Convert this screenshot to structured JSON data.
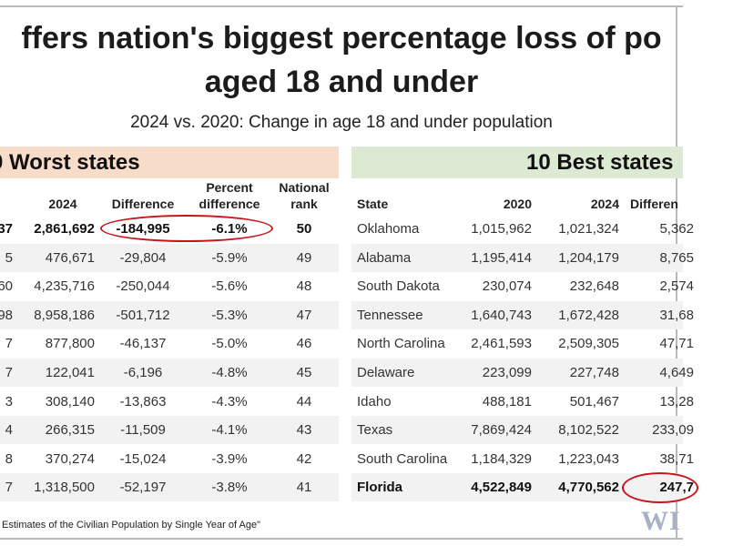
{
  "headline": {
    "line1": "ffers nation's biggest percentage loss of po",
    "line2": "aged 18 and under"
  },
  "subtitle": "2024 vs. 2020: Change in age 18 and under population",
  "worst": {
    "title": "0 Worst states",
    "headers": {
      "y2024": "2024",
      "difference": "Difference",
      "percent_l1": "Percent",
      "percent_l2": "difference",
      "rank_l1": "National",
      "rank_l2": "rank"
    },
    "rows": [
      {
        "y2020": "37",
        "y2024": "2,861,692",
        "difference": "-184,995",
        "percent": "-6.1%",
        "rank": "50"
      },
      {
        "y2020": "5",
        "y2024": "476,671",
        "difference": "-29,804",
        "percent": "-5.9%",
        "rank": "49"
      },
      {
        "y2020": "60",
        "y2024": "4,235,716",
        "difference": "-250,044",
        "percent": "-5.6%",
        "rank": "48"
      },
      {
        "y2020": "98",
        "y2024": "8,958,186",
        "difference": "-501,712",
        "percent": "-5.3%",
        "rank": "47"
      },
      {
        "y2020": "7",
        "y2024": "877,800",
        "difference": "-46,137",
        "percent": "-5.0%",
        "rank": "46"
      },
      {
        "y2020": "7",
        "y2024": "122,041",
        "difference": "-6,196",
        "percent": "-4.8%",
        "rank": "45"
      },
      {
        "y2020": "3",
        "y2024": "308,140",
        "difference": "-13,863",
        "percent": "-4.3%",
        "rank": "44"
      },
      {
        "y2020": "4",
        "y2024": "266,315",
        "difference": "-11,509",
        "percent": "-4.1%",
        "rank": "43"
      },
      {
        "y2020": "8",
        "y2024": "370,274",
        "difference": "-15,024",
        "percent": "-3.9%",
        "rank": "42"
      },
      {
        "y2020": "7",
        "y2024": "1,318,500",
        "difference": "-52,197",
        "percent": "-3.8%",
        "rank": "41"
      }
    ]
  },
  "best": {
    "title": "10 Best states",
    "headers": {
      "state": "State",
      "y2020": "2020",
      "y2024": "2024",
      "difference": "Differen"
    },
    "rows": [
      {
        "state": "Oklahoma",
        "y2020": "1,015,962",
        "y2024": "1,021,324",
        "difference": "5,362"
      },
      {
        "state": "Alabama",
        "y2020": "1,195,414",
        "y2024": "1,204,179",
        "difference": "8,765"
      },
      {
        "state": "South Dakota",
        "y2020": "230,074",
        "y2024": "232,648",
        "difference": "2,574"
      },
      {
        "state": "Tennessee",
        "y2020": "1,640,743",
        "y2024": "1,672,428",
        "difference": "31,68"
      },
      {
        "state": "North Carolina",
        "y2020": "2,461,593",
        "y2024": "2,509,305",
        "difference": "47,71"
      },
      {
        "state": "Delaware",
        "y2020": "223,099",
        "y2024": "227,748",
        "difference": "4,649"
      },
      {
        "state": "Idaho",
        "y2020": "488,181",
        "y2024": "501,467",
        "difference": "13,28"
      },
      {
        "state": "Texas",
        "y2020": "7,869,424",
        "y2024": "8,102,522",
        "difference": "233,09"
      },
      {
        "state": "South Carolina",
        "y2020": "1,184,329",
        "y2024": "1,223,043",
        "difference": "38,71"
      },
      {
        "state": "Florida",
        "y2020": "4,522,849",
        "y2024": "4,770,562",
        "difference": "247,7"
      }
    ]
  },
  "source": "Estimates of the Civilian Population by Single Year of Age\"",
  "logo": "WI",
  "colors": {
    "worst_band": "#f7dcca",
    "best_band": "#dce9d3",
    "highlight_oval": "#c8141b",
    "row_stripe": "#f2f2f2"
  }
}
